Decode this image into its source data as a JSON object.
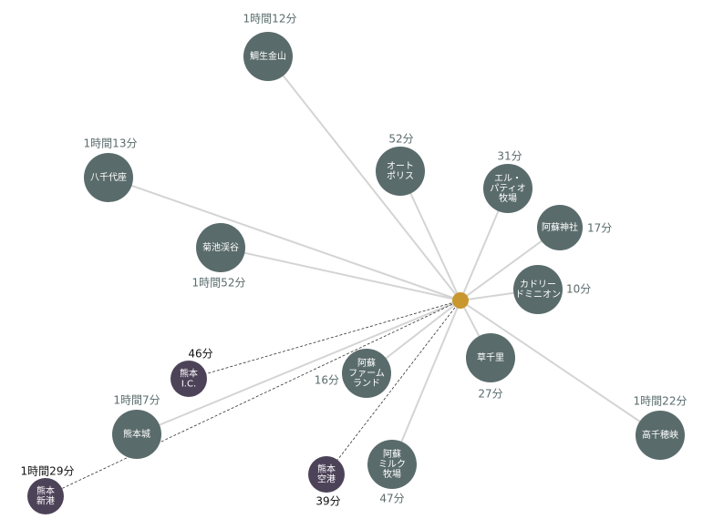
{
  "hub": {},
  "nodes": [
    {
      "label": [
        "鯛生金山"
      ],
      "time": "1時間12分"
    },
    {
      "label": [
        "八千代座"
      ],
      "time": "1時間13分"
    },
    {
      "label": [
        "菊池渓谷"
      ],
      "time": "1時間52分"
    },
    {
      "label": [
        "オート",
        "ポリス"
      ],
      "time": "52分"
    },
    {
      "label": [
        "エル・",
        "パティオ",
        "牧場"
      ],
      "time": "31分"
    },
    {
      "label": [
        "阿蘇神社"
      ],
      "time": "17分"
    },
    {
      "label": [
        "カドリー",
        "ドミニオン"
      ],
      "time": "10分"
    },
    {
      "label": [
        "草千里"
      ],
      "time": "27分"
    },
    {
      "label": [
        "高千穂峡"
      ],
      "time": "1時間22分"
    },
    {
      "label": [
        "阿蘇",
        "ファーム",
        "ランド"
      ],
      "time": "16分"
    },
    {
      "label": [
        "阿蘇",
        "ミルク",
        "牧場"
      ],
      "time": "47分"
    },
    {
      "label": [
        "熊本城"
      ],
      "time": "1時間7分"
    },
    {
      "label": [
        "熊本",
        "I.C."
      ],
      "time": "46分"
    },
    {
      "label": [
        "熊本",
        "空港"
      ],
      "time": "39分"
    },
    {
      "label": [
        "熊本",
        "新港"
      ],
      "time": "1時間29分"
    }
  ]
}
